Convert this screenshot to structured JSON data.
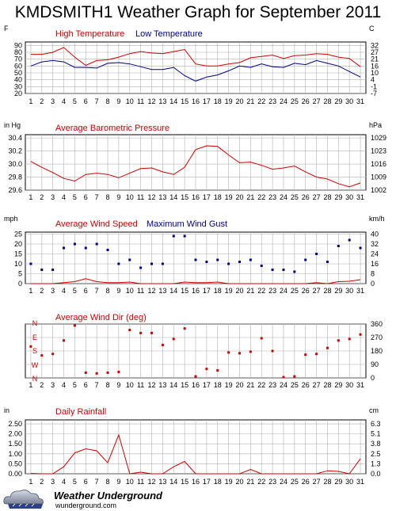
{
  "title": "KMDSMITH1 Weather Graph for September 2011",
  "footer": {
    "brand": "Weather Underground",
    "url": "wunderground.com",
    "logo_icon": "cloud-rain-logo-icon"
  },
  "colors": {
    "high": "#cc0000",
    "low": "#000080",
    "grid": "#b0b0b0"
  },
  "days": [
    "1",
    "2",
    "3",
    "4",
    "5",
    "6",
    "7",
    "8",
    "9",
    "10",
    "11",
    "12",
    "13",
    "14",
    "15",
    "16",
    "17",
    "18",
    "19",
    "20",
    "21",
    "22",
    "23",
    "24",
    "25",
    "26",
    "27",
    "28",
    "29",
    "30",
    "31"
  ],
  "chart_data": [
    {
      "id": "temperature",
      "type": "line",
      "x": [
        1,
        2,
        3,
        4,
        5,
        6,
        7,
        8,
        9,
        10,
        11,
        12,
        13,
        14,
        15,
        16,
        17,
        18,
        19,
        20,
        21,
        22,
        23,
        24,
        25,
        26,
        27,
        28,
        29,
        30,
        31
      ],
      "series": [
        {
          "name": "High Temperature",
          "color": "#cc0000",
          "values": [
            77,
            77,
            80,
            87,
            73,
            61,
            68,
            69,
            73,
            78,
            81,
            79,
            78,
            81,
            84,
            63,
            60,
            60,
            63,
            65,
            72,
            74,
            76,
            71,
            75,
            76,
            78,
            77,
            73,
            71,
            59
          ]
        },
        {
          "name": "Low Temperature",
          "color": "#000080",
          "values": [
            60,
            66,
            68,
            66,
            58,
            58,
            57,
            64,
            65,
            63,
            59,
            55,
            55,
            58,
            46,
            38,
            44,
            47,
            53,
            60,
            58,
            63,
            59,
            58,
            64,
            62,
            68,
            64,
            60,
            52,
            44
          ]
        }
      ],
      "left_unit": "F",
      "right_unit": "C",
      "left_ticks": [
        "20",
        "30",
        "40",
        "50",
        "60",
        "70",
        "80",
        "90"
      ],
      "right_ticks": [
        "-7",
        "-1",
        "4",
        "10",
        "16",
        "21",
        "27",
        "32"
      ],
      "ylim": [
        20,
        95
      ]
    },
    {
      "id": "pressure",
      "type": "line",
      "x": [
        1,
        2,
        3,
        4,
        5,
        6,
        7,
        8,
        9,
        10,
        11,
        12,
        13,
        14,
        15,
        16,
        17,
        18,
        19,
        20,
        21,
        22,
        23,
        24,
        25,
        26,
        27,
        28,
        29,
        30,
        31
      ],
      "series": [
        {
          "name": "Average Barometric Pressure",
          "color": "#cc0000",
          "values": [
            30.04,
            29.95,
            29.87,
            29.78,
            29.74,
            29.84,
            29.86,
            29.84,
            29.79,
            29.86,
            29.93,
            29.94,
            29.88,
            29.84,
            29.95,
            30.22,
            30.28,
            30.27,
            30.14,
            30.02,
            30.03,
            29.98,
            29.92,
            29.94,
            29.97,
            29.88,
            29.8,
            29.77,
            29.7,
            29.65,
            29.71
          ]
        }
      ],
      "left_unit": "in Hg",
      "right_unit": "hPa",
      "left_ticks": [
        "29.6",
        "29.8",
        "30.0",
        "30.2",
        "30.4"
      ],
      "right_ticks": [
        "1002",
        "1009",
        "1016",
        "1023",
        "1029"
      ],
      "ylim": [
        29.6,
        30.45
      ]
    },
    {
      "id": "wind",
      "type": "line",
      "x": [
        1,
        2,
        3,
        4,
        5,
        6,
        7,
        8,
        9,
        10,
        11,
        12,
        13,
        14,
        15,
        16,
        17,
        18,
        19,
        20,
        21,
        22,
        23,
        24,
        25,
        26,
        27,
        28,
        29,
        30,
        31
      ],
      "series": [
        {
          "name": "Average Wind Speed",
          "color": "#cc0000",
          "style": "line",
          "values": [
            0,
            0,
            0,
            0.5,
            1,
            2.5,
            1,
            0.5,
            0.5,
            0.8,
            0,
            0,
            0,
            0,
            0.8,
            0.5,
            0.5,
            0.8,
            0,
            0,
            0,
            0,
            0,
            0,
            0,
            0,
            0.5,
            0,
            1,
            1.2,
            2
          ]
        },
        {
          "name": "Maximum Wind Gust",
          "color": "#000080",
          "style": "points",
          "values": [
            10,
            7,
            7,
            18,
            20,
            18,
            20,
            17,
            10,
            12,
            8,
            10,
            10,
            24,
            24,
            12,
            11,
            12,
            10,
            11,
            12,
            9,
            7,
            7,
            6,
            12,
            15,
            11,
            19,
            22,
            18
          ]
        }
      ],
      "left_unit": "mph",
      "right_unit": "km/h",
      "left_ticks": [
        "0",
        "5",
        "10",
        "15",
        "20",
        "25"
      ],
      "right_ticks": [
        "0",
        "8",
        "16",
        "24",
        "32",
        "40"
      ],
      "ylim": [
        0,
        26
      ]
    },
    {
      "id": "winddir",
      "type": "scatter",
      "x": [
        1,
        2,
        3,
        4,
        5,
        6,
        7,
        8,
        9,
        10,
        11,
        12,
        13,
        14,
        15,
        16,
        17,
        18,
        19,
        20,
        21,
        22,
        23,
        24,
        25,
        26,
        27,
        28,
        29,
        30,
        31
      ],
      "series": [
        {
          "name": "Average Wind Dir (deg)",
          "color": "#cc0000",
          "values": [
            210,
            150,
            160,
            250,
            350,
            35,
            30,
            35,
            40,
            320,
            300,
            300,
            220,
            260,
            330,
            10,
            60,
            50,
            170,
            165,
            175,
            265,
            180,
            5,
            10,
            155,
            160,
            200,
            250,
            260,
            290
          ]
        }
      ],
      "left_ticks": [
        "N",
        "W",
        "S",
        "E",
        "N"
      ],
      "right_ticks": [
        "0",
        "90",
        "180",
        "270",
        "360"
      ],
      "ylim": [
        0,
        360
      ]
    },
    {
      "id": "rain",
      "type": "line",
      "x": [
        1,
        2,
        3,
        4,
        5,
        6,
        7,
        8,
        9,
        10,
        11,
        12,
        13,
        14,
        15,
        16,
        17,
        18,
        19,
        20,
        21,
        22,
        23,
        24,
        25,
        26,
        27,
        28,
        29,
        30,
        31
      ],
      "series": [
        {
          "name": "Daily Rainfall",
          "color": "#cc0000",
          "values": [
            0.02,
            0,
            0,
            0.35,
            1.05,
            1.25,
            1.15,
            0.55,
            1.95,
            0,
            0.08,
            0,
            0,
            0.35,
            0.62,
            0,
            0,
            0,
            0,
            0,
            0.22,
            0,
            0,
            0,
            0,
            0,
            0,
            0.15,
            0.12,
            0,
            0.75
          ]
        }
      ],
      "left_unit": "in",
      "right_unit": "cm",
      "left_ticks": [
        "0.00",
        "0.50",
        "1.00",
        "1.50",
        "2.00",
        "2.50"
      ],
      "right_ticks": [
        "0.0",
        "1.3",
        "2.5",
        "3.8",
        "5.1",
        "6.3"
      ],
      "ylim": [
        0,
        2.7
      ]
    }
  ]
}
